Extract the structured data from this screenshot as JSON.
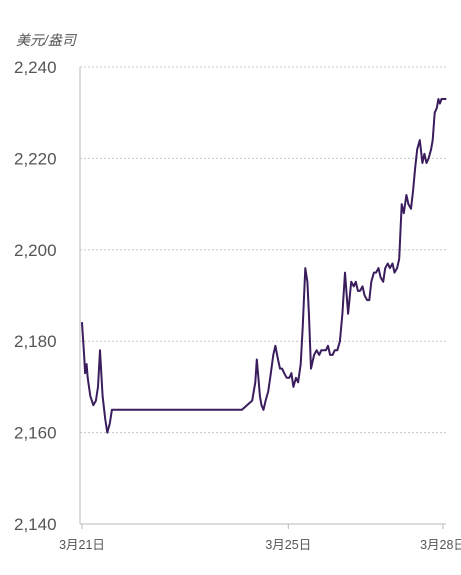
{
  "chart_data": {
    "type": "line",
    "ylabel": "美元/盎司",
    "ylim": [
      2140,
      2240
    ],
    "yticks": [
      2140,
      2160,
      2180,
      2200,
      2220,
      2240
    ],
    "ytick_labels": [
      "2,140",
      "2,160",
      "2,180",
      "2,200",
      "2,220",
      "2,240"
    ],
    "xlim": [
      0,
      7.1
    ],
    "xticks": [
      0,
      4,
      7
    ],
    "xtick_labels": [
      "3月21日",
      "3月25日",
      "3月28日"
    ],
    "grid": "horizontal-dotted",
    "legend": "none",
    "series": [
      {
        "color": "#3a1d5c",
        "x": [
          0.0,
          0.04,
          0.06,
          0.09,
          0.11,
          0.16,
          0.22,
          0.27,
          0.31,
          0.35,
          0.4,
          0.45,
          0.49,
          0.54,
          0.58,
          0.62,
          0.66,
          0.71,
          0.75,
          0.8,
          0.84,
          0.88,
          0.93,
          0.97,
          1.02,
          1.06,
          1.1,
          1.5,
          2.0,
          2.5,
          3.1,
          3.2,
          3.3,
          3.36,
          3.39,
          3.42,
          3.45,
          3.48,
          3.52,
          3.56,
          3.61,
          3.65,
          3.71,
          3.75,
          3.8,
          3.84,
          3.88,
          3.92,
          3.97,
          4.02,
          4.06,
          4.1,
          4.15,
          4.19,
          4.24,
          4.28,
          4.33,
          4.37,
          4.4,
          4.44,
          4.5,
          4.55,
          4.6,
          4.64,
          4.69,
          4.73,
          4.77,
          4.81,
          4.86,
          4.9,
          4.95,
          5.0,
          5.05,
          5.1,
          5.16,
          5.22,
          5.27,
          5.31,
          5.35,
          5.39,
          5.44,
          5.48,
          5.53,
          5.57,
          5.61,
          5.66,
          5.7,
          5.75,
          5.79,
          5.84,
          5.88,
          5.93,
          5.97,
          6.02,
          6.06,
          6.11,
          6.15,
          6.2,
          6.24,
          6.29,
          6.33,
          6.38,
          6.42,
          6.46,
          6.5,
          6.55,
          6.6,
          6.64,
          6.68,
          6.72,
          6.77,
          6.8,
          6.84,
          6.88,
          6.91,
          6.94,
          6.97,
          7.0,
          7.05
        ],
        "y": [
          2184,
          2177,
          2173,
          2175,
          2172,
          2168,
          2166,
          2167,
          2170,
          2178,
          2168,
          2163,
          2160,
          2162,
          2165,
          2165,
          2165,
          2165,
          2165,
          2165,
          2165,
          2165,
          2165,
          2165,
          2165,
          2165,
          2165,
          2165,
          2165,
          2165,
          2165,
          2166,
          2167,
          2171,
          2176,
          2172,
          2168,
          2166,
          2165,
          2167,
          2169,
          2172,
          2177,
          2179,
          2176,
          2174,
          2174,
          2173,
          2172,
          2172,
          2173,
          2170,
          2172,
          2171,
          2175,
          2183,
          2196,
          2193,
          2186,
          2174,
          2177,
          2178,
          2177,
          2178,
          2178,
          2178,
          2179,
          2177,
          2177,
          2178,
          2178,
          2180,
          2186,
          2195,
          2186,
          2193,
          2192,
          2193,
          2191,
          2191,
          2192,
          2190,
          2189,
          2189,
          2193,
          2195,
          2195,
          2196,
          2194,
          2193,
          2196,
          2197,
          2196,
          2197,
          2195,
          2196,
          2198,
          2210,
          2208,
          2212,
          2210,
          2209,
          2213,
          2218,
          2222,
          2224,
          2219,
          2221,
          2219,
          2220,
          2222,
          2224,
          2230,
          2231,
          2233,
          2232,
          2233,
          2233,
          2233
        ]
      }
    ]
  }
}
